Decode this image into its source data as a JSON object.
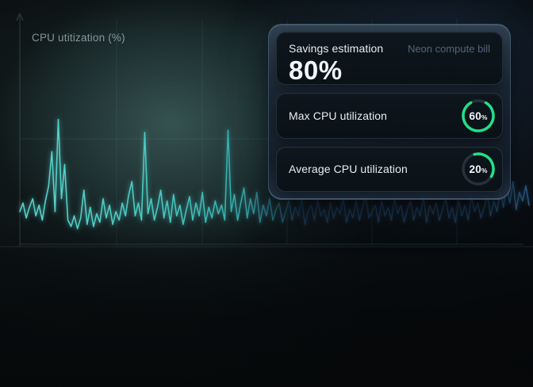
{
  "chart": {
    "title_label": "CPU utitization (%)"
  },
  "panel": {
    "savings": {
      "label": "Savings estimation",
      "tag": "Neon compute bill",
      "value": "80%"
    },
    "metrics": [
      {
        "label": "Max CPU utilization",
        "value": "60",
        "unit": "%",
        "percent": 60
      },
      {
        "label": "Average CPU utilization",
        "value": "20",
        "unit": "%",
        "percent": 20
      }
    ]
  },
  "colors": {
    "accent_green": "#21e087",
    "ring_track": "#27313c",
    "wave_bright_teal": "#5cd9d2",
    "wave_dim_blue": "#1d3a57",
    "wave_far_right_blue": "#2e5f8a"
  },
  "chart_data": {
    "type": "line",
    "title": "CPU utitization (%)",
    "xlabel": "",
    "ylabel": "CPU utilization (%)",
    "ylim": [
      0,
      100
    ],
    "grid": "faint teal gridlines, y-axis arrow at left, baseline axis at bottom",
    "legend": "none",
    "annotations": {
      "max_cpu_percent": 60,
      "avg_cpu_percent": 20,
      "savings_percent": 80
    },
    "values": [
      16,
      20,
      13,
      18,
      22,
      14,
      19,
      12,
      21,
      28,
      44,
      16,
      59,
      22,
      38,
      12,
      9,
      14,
      8,
      13,
      26,
      10,
      18,
      9,
      15,
      11,
      22,
      13,
      19,
      10,
      16,
      12,
      20,
      14,
      24,
      30,
      14,
      20,
      12,
      53,
      15,
      22,
      12,
      18,
      26,
      13,
      21,
      11,
      24,
      14,
      19,
      10,
      17,
      23,
      12,
      20,
      14,
      25,
      11,
      18,
      13,
      21,
      15,
      19,
      12,
      54,
      16,
      24,
      12,
      20,
      27,
      13,
      22,
      15,
      25,
      11,
      19,
      14,
      22,
      12,
      17,
      20,
      11,
      16,
      21,
      12,
      18,
      14,
      22,
      10,
      16,
      19,
      12,
      21,
      14,
      17,
      11,
      20,
      13,
      18,
      15,
      22,
      11,
      17,
      13,
      21,
      12,
      18,
      23,
      13,
      16,
      19,
      11,
      21,
      14,
      18,
      12,
      22,
      15,
      19,
      11,
      17,
      21,
      12,
      18,
      14,
      23,
      11,
      19,
      15,
      20,
      12,
      17,
      22,
      13,
      18,
      11,
      21,
      14,
      19,
      12,
      23,
      16,
      20,
      13,
      18,
      24,
      14,
      21,
      16,
      26,
      18,
      28,
      20,
      30,
      17,
      25,
      21,
      28,
      19
    ]
  }
}
